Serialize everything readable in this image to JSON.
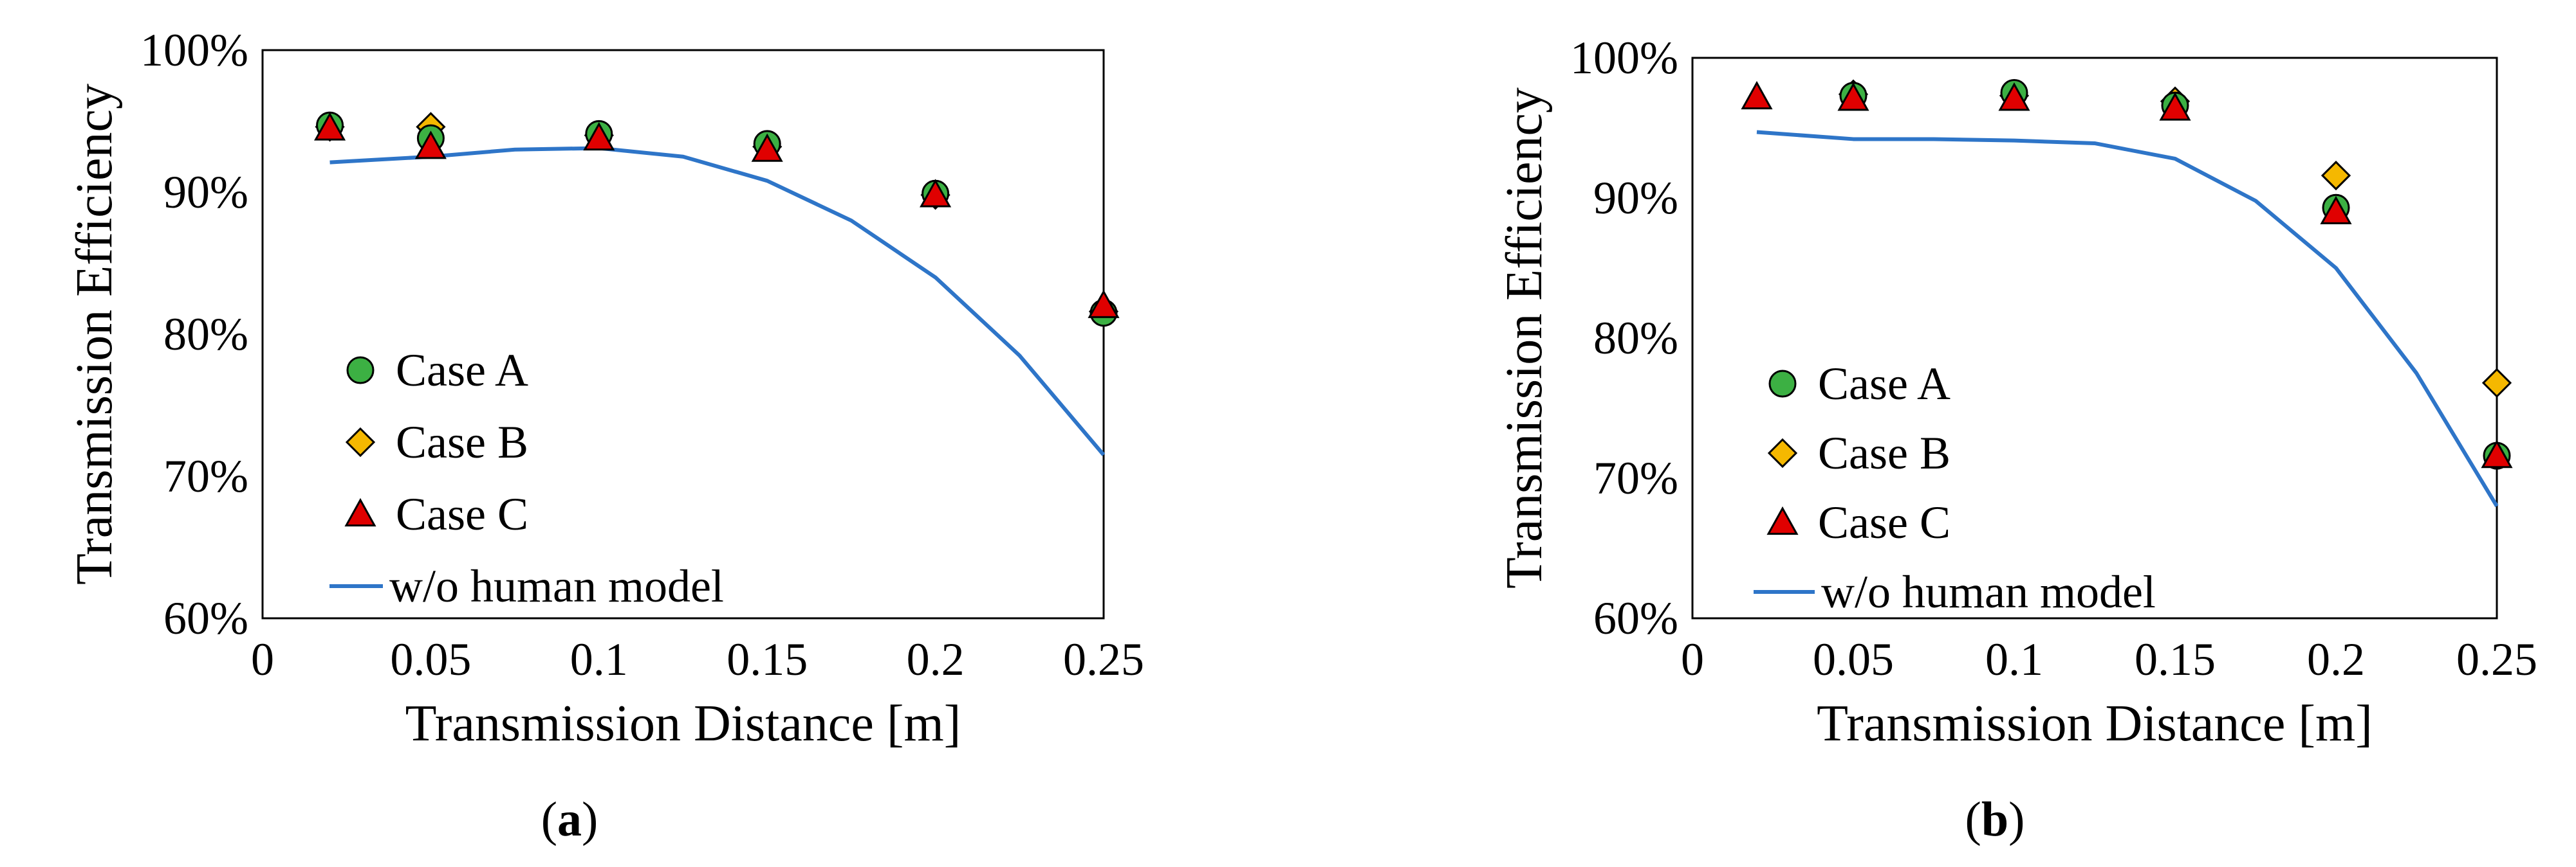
{
  "colors": {
    "case_a": "#3cb043",
    "case_b": "#f5b800",
    "case_c": "#e00000",
    "model_line": "#2e75c8",
    "marker_edge": "#000000",
    "frame": "#000000"
  },
  "chart_data": [
    {
      "panel": "a",
      "panel_label": {
        "open": "(",
        "letter": "a",
        "close": ")"
      },
      "type": "scatter",
      "xlabel": "Transmission Distance [m]",
      "ylabel": "Transmission Efficiency",
      "xlim": [
        0,
        0.25
      ],
      "ylim": [
        60,
        100
      ],
      "x_ticks": [
        0,
        0.05,
        0.1,
        0.15,
        0.2,
        0.25
      ],
      "x_tick_labels": [
        "0",
        "0.05",
        "0.1",
        "0.15",
        "0.2",
        "0.25"
      ],
      "y_ticks": [
        60,
        70,
        80,
        90,
        100
      ],
      "y_tick_labels": [
        "60%",
        "70%",
        "80%",
        "90%",
        "100%"
      ],
      "legend_position": "lower-left",
      "series": [
        {
          "name": "Case A",
          "marker": "circle",
          "x": [
            0.02,
            0.05,
            0.1,
            0.15,
            0.2,
            0.25
          ],
          "y": [
            94.7,
            93.8,
            94.1,
            93.4,
            89.9,
            81.5
          ]
        },
        {
          "name": "Case B",
          "marker": "diamond",
          "x": [
            0.02,
            0.05,
            0.1,
            0.15,
            0.2,
            0.25
          ],
          "y": [
            94.6,
            94.6,
            94.0,
            93.2,
            89.8,
            81.6
          ]
        },
        {
          "name": "Case C",
          "marker": "triangle",
          "x": [
            0.02,
            0.05,
            0.1,
            0.15,
            0.2,
            0.25
          ],
          "y": [
            94.5,
            93.2,
            93.8,
            93.0,
            89.8,
            82.0
          ]
        },
        {
          "name": "w/o human model",
          "marker": "line",
          "x": [
            0.02,
            0.05,
            0.075,
            0.1,
            0.125,
            0.15,
            0.175,
            0.2,
            0.225,
            0.25
          ],
          "y": [
            92.1,
            92.5,
            93.0,
            93.1,
            92.5,
            90.8,
            88.0,
            84.0,
            78.5,
            71.5
          ]
        }
      ]
    },
    {
      "panel": "b",
      "panel_label": {
        "open": "(",
        "letter": "b",
        "close": ")"
      },
      "type": "scatter",
      "xlabel": "Transmission Distance [m]",
      "ylabel": "Transmission Efficiency",
      "xlim": [
        0,
        0.25
      ],
      "ylim": [
        60,
        100
      ],
      "x_ticks": [
        0,
        0.05,
        0.1,
        0.15,
        0.2,
        0.25
      ],
      "x_tick_labels": [
        "0",
        "0.05",
        "0.1",
        "0.15",
        "0.2",
        "0.25"
      ],
      "y_ticks": [
        60,
        70,
        80,
        90,
        100
      ],
      "y_tick_labels": [
        "60%",
        "70%",
        "80%",
        "90%",
        "100%"
      ],
      "legend_position": "lower-left",
      "series": [
        {
          "name": "Case A",
          "marker": "circle",
          "x": [
            0.05,
            0.1,
            0.15,
            0.2,
            0.25
          ],
          "y": [
            97.3,
            97.5,
            96.6,
            89.3,
            71.6
          ]
        },
        {
          "name": "Case B",
          "marker": "diamond",
          "x": [
            0.05,
            0.1,
            0.15,
            0.2,
            0.25
          ],
          "y": [
            97.4,
            97.3,
            96.9,
            91.6,
            76.8
          ]
        },
        {
          "name": "Case C",
          "marker": "triangle",
          "x": [
            0.02,
            0.05,
            0.1,
            0.15,
            0.2,
            0.25
          ],
          "y": [
            97.2,
            97.1,
            97.1,
            96.4,
            89.0,
            71.6
          ]
        },
        {
          "name": "w/o human model",
          "marker": "line",
          "x": [
            0.02,
            0.05,
            0.075,
            0.1,
            0.125,
            0.15,
            0.175,
            0.2,
            0.225,
            0.25
          ],
          "y": [
            94.7,
            94.2,
            94.2,
            94.1,
            93.9,
            92.8,
            89.8,
            85.0,
            77.5,
            68.0
          ]
        }
      ]
    }
  ]
}
